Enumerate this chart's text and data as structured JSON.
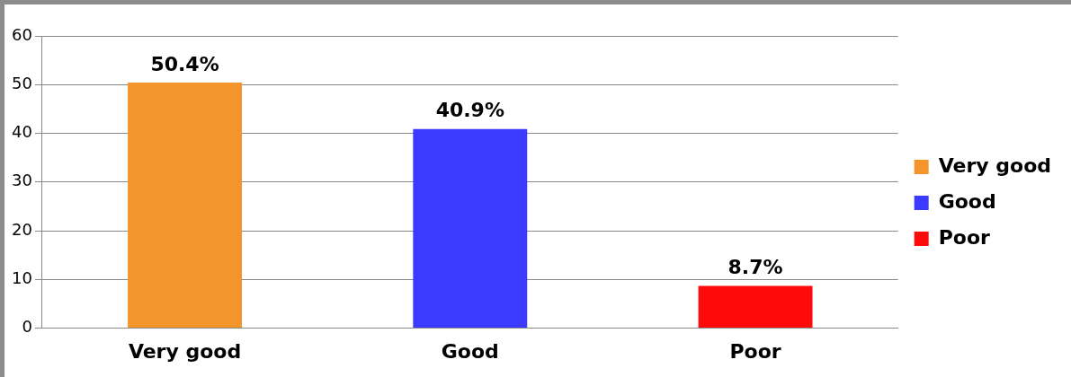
{
  "chart_data": {
    "type": "bar",
    "categories": [
      "Very good",
      "Good",
      "Poor"
    ],
    "series": [
      {
        "name": "Very good",
        "color": "#f4952b",
        "values": [
          50.4,
          null,
          null
        ],
        "value_labels": [
          "50.4%",
          null,
          null
        ]
      },
      {
        "name": "Good",
        "color": "#3b3bff",
        "values": [
          null,
          40.9,
          null
        ],
        "value_labels": [
          null,
          "40.9%",
          null
        ]
      },
      {
        "name": "Poor",
        "color": "#ff0a0a",
        "values": [
          null,
          null,
          8.7
        ],
        "value_labels": [
          null,
          null,
          "8.7%"
        ]
      }
    ],
    "ylim": [
      0,
      60
    ],
    "yticks": [
      0,
      10,
      20,
      30,
      40,
      50,
      60
    ],
    "grid": "y",
    "legend": "right"
  }
}
